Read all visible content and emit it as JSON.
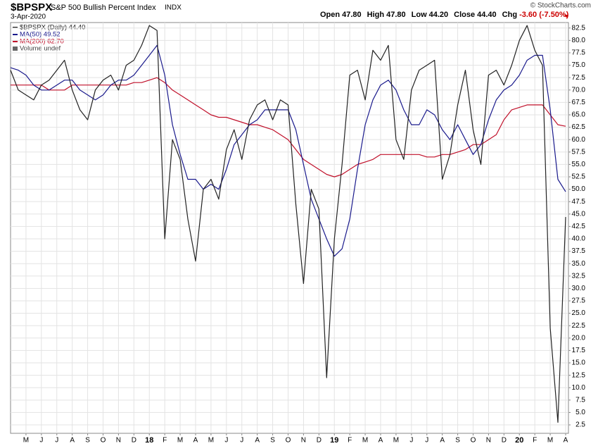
{
  "chart_data": {
    "type": "line",
    "title": "$BPSPX",
    "subtitle": "S&P 500 Bullish Percent Index",
    "exchange": "INDX",
    "date": "3-Apr-2020",
    "quote": [
      {
        "label": "Open",
        "value": "47.80"
      },
      {
        "label": "High",
        "value": "47.80"
      },
      {
        "label": "Low",
        "value": "44.20"
      },
      {
        "label": "Close",
        "value": "44.40"
      },
      {
        "label": "Chg",
        "value": "-3.60 (-7.50%)"
      }
    ],
    "credit": "© StockCharts.com",
    "volume_legend": "Volume undef",
    "categories": [
      null,
      null,
      "M",
      null,
      "J",
      null,
      "J",
      null,
      "A",
      null,
      "S",
      null,
      "O",
      null,
      "N",
      null,
      "D",
      null,
      "18",
      null,
      "F",
      null,
      "M",
      null,
      "A",
      null,
      "M",
      null,
      "J",
      null,
      "J",
      null,
      "A",
      null,
      "S",
      null,
      "O",
      null,
      "N",
      null,
      "D",
      null,
      "19",
      null,
      "F",
      null,
      "M",
      null,
      "A",
      null,
      "M",
      null,
      "J",
      null,
      "J",
      null,
      "A",
      null,
      "S",
      null,
      "O",
      null,
      "N",
      null,
      "D",
      null,
      "20",
      null,
      "F",
      null,
      "M",
      null,
      "A"
    ],
    "series": [
      {
        "name": "$BPSPX (Daily) 44.40",
        "color": "#222222",
        "width": 1.2,
        "values": [
          74,
          70,
          69,
          68,
          71,
          72,
          74,
          76,
          70,
          66,
          64,
          70,
          72,
          73,
          70,
          75,
          76,
          79,
          83,
          82,
          40,
          60,
          56,
          44,
          35.5,
          50,
          52,
          48,
          58,
          62,
          56,
          64,
          67,
          68,
          64,
          68,
          67,
          47,
          31,
          50,
          46,
          12,
          40,
          55,
          73,
          74,
          68,
          78,
          76,
          79,
          60,
          56,
          70,
          74,
          75,
          76,
          52,
          57,
          67,
          74,
          62,
          55,
          73,
          74,
          71,
          75,
          80,
          83,
          78,
          75,
          22,
          3,
          44.4
        ]
      },
      {
        "name": "MA(50) 49.52",
        "color": "#1a1a8c",
        "width": 1.2,
        "values": [
          74.5,
          74,
          73,
          71,
          70,
          70,
          71,
          72,
          72,
          70,
          69,
          68,
          69,
          71,
          72,
          72,
          73,
          75,
          77,
          79,
          73,
          63,
          57,
          52,
          52,
          50,
          51,
          50,
          54,
          59,
          61,
          63,
          64,
          66,
          66,
          66,
          66,
          62,
          55,
          48,
          44,
          40,
          36.5,
          38,
          44,
          54,
          63,
          68,
          71,
          72,
          70,
          66,
          63,
          63,
          66,
          65,
          62,
          60,
          63,
          60,
          57,
          59,
          64,
          68,
          70,
          71,
          73,
          76,
          77,
          77,
          66,
          52,
          49.5
        ]
      },
      {
        "name": "MA(200) 62.70",
        "color": "#c0102a",
        "width": 1.2,
        "values": [
          71,
          71,
          71,
          71,
          71,
          70,
          70,
          70,
          71,
          71,
          71,
          71,
          71,
          71,
          71,
          71,
          71.5,
          71.5,
          72,
          72.5,
          71.5,
          70,
          69,
          68,
          67,
          66,
          65,
          64.5,
          64.5,
          64,
          63.5,
          63,
          63,
          62.5,
          62,
          61,
          60,
          58,
          56,
          55,
          54,
          53,
          52.5,
          53,
          54,
          55,
          55.5,
          56,
          57,
          57,
          57,
          57,
          57,
          57,
          56.5,
          56.5,
          57,
          57,
          57.5,
          58,
          59,
          59,
          60,
          61,
          64,
          66,
          66.5,
          67,
          67,
          67,
          65,
          63,
          62.7
        ]
      }
    ],
    "ylim": [
      0.8,
      83.6
    ],
    "yticks": [
      2.5,
      {
        "value": 5,
        "label": "5.0"
      },
      7.5,
      {
        "value": 10,
        "label": "10.0"
      },
      12.5,
      {
        "value": 15,
        "label": "15.0"
      },
      17.5,
      {
        "value": 20,
        "label": "20.0"
      },
      22.5,
      {
        "value": 25,
        "label": "25.0"
      },
      27.5,
      {
        "value": 30,
        "label": "30.0"
      },
      32.5,
      {
        "value": 35,
        "label": "35.0"
      },
      37.5,
      {
        "value": 40,
        "label": "40.0"
      },
      42.5,
      {
        "value": 45,
        "label": "45.0"
      },
      47.5,
      {
        "value": 50,
        "label": "50.0"
      },
      52.5,
      {
        "value": 55,
        "label": "55.0"
      },
      57.5,
      {
        "value": 60,
        "label": "60.0"
      },
      62.5,
      {
        "value": 65,
        "label": "65.0"
      },
      67.5,
      {
        "value": 70,
        "label": "70.0"
      },
      72.5,
      {
        "value": 75,
        "label": "75.0"
      },
      77.5,
      {
        "value": 80,
        "label": "80.0"
      },
      82.5
    ],
    "grid": true
  }
}
